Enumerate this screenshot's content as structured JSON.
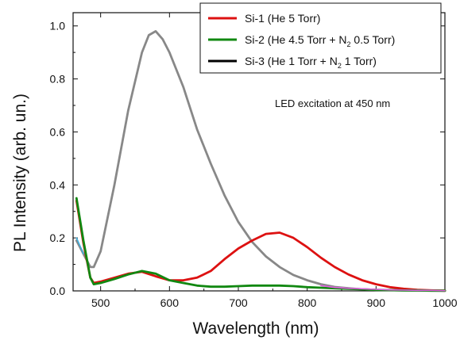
{
  "chart_data": {
    "type": "line",
    "xlabel": "Wavelength (nm)",
    "ylabel": "PL Intensity (arb. un.)",
    "xlim": [
      460,
      1000
    ],
    "ylim": [
      0,
      1.05
    ],
    "x_ticks": [
      500,
      600,
      700,
      800,
      900,
      1000
    ],
    "x_tick_labels": [
      "500",
      "600",
      "700",
      "800",
      "900",
      "1000"
    ],
    "y_ticks": [
      0.0,
      0.2,
      0.4,
      0.6,
      0.8,
      1.0
    ],
    "y_tick_labels": [
      "0.0",
      "0.2",
      "0.4",
      "0.6",
      "0.8",
      "1.0"
    ],
    "annotation": "LED excitation at 450 nm",
    "legend_position": "top-right",
    "legend": [
      {
        "label": "Si-1 (He 5 Torr)",
        "color": "#dd1111",
        "series": "Si-1"
      },
      {
        "label_main": "Si-2 (He 4.5 Torr + N",
        "label_sub": "2",
        "label_tail": " 0.5 Torr)",
        "color": "#118811",
        "series": "Si-2"
      },
      {
        "label_main": "Si-3 (He 1 Torr + N",
        "label_sub": "2",
        "label_tail": " 1 Torr)",
        "color": "#000000",
        "series": "Si-3"
      }
    ],
    "series": [
      {
        "name": "Si-1",
        "color": "#dd1111",
        "x": [
          465,
          475,
          485,
          490,
          500,
          520,
          540,
          560,
          580,
          600,
          620,
          640,
          660,
          680,
          700,
          720,
          740,
          760,
          780,
          800,
          820,
          840,
          860,
          880,
          900,
          920,
          940,
          960,
          980,
          1000
        ],
        "y": [
          0.34,
          0.18,
          0.05,
          0.03,
          0.035,
          0.05,
          0.065,
          0.072,
          0.055,
          0.04,
          0.04,
          0.05,
          0.075,
          0.12,
          0.16,
          0.19,
          0.215,
          0.22,
          0.2,
          0.165,
          0.125,
          0.09,
          0.062,
          0.04,
          0.025,
          0.014,
          0.008,
          0.004,
          0.002,
          0.001
        ]
      },
      {
        "name": "Si-2",
        "color": "#118811",
        "x": [
          465,
          475,
          485,
          490,
          500,
          520,
          540,
          560,
          580,
          600,
          620,
          640,
          660,
          680,
          700,
          720,
          740,
          760,
          780,
          800,
          820,
          840,
          860,
          880,
          900,
          920,
          940,
          960,
          980,
          1000
        ],
        "y": [
          0.35,
          0.19,
          0.05,
          0.025,
          0.03,
          0.045,
          0.062,
          0.075,
          0.065,
          0.04,
          0.03,
          0.02,
          0.016,
          0.016,
          0.018,
          0.02,
          0.02,
          0.02,
          0.018,
          0.014,
          0.012,
          0.01,
          0.008,
          0.006,
          0.004,
          0.003,
          0.002,
          0.002,
          0.001,
          0.001
        ]
      },
      {
        "name": "gray",
        "color": "#888888",
        "x": [
          465,
          475,
          485,
          490,
          500,
          520,
          540,
          560,
          570,
          580,
          590,
          600,
          620,
          640,
          660,
          680,
          700,
          720,
          740,
          760,
          780,
          800,
          820,
          840,
          860,
          880,
          900,
          920,
          940,
          960,
          980,
          1000
        ],
        "y": [
          0.19,
          0.14,
          0.09,
          0.09,
          0.15,
          0.4,
          0.68,
          0.9,
          0.965,
          0.98,
          0.95,
          0.9,
          0.77,
          0.61,
          0.48,
          0.36,
          0.26,
          0.185,
          0.13,
          0.09,
          0.06,
          0.04,
          0.025,
          0.015,
          0.01,
          0.006,
          0.004,
          0.003,
          0.002,
          0.001,
          0.001,
          0.0
        ]
      },
      {
        "name": "magenta",
        "color": "#e060e0",
        "x": [
          820,
          840,
          860,
          880,
          900,
          920,
          940,
          960,
          980,
          1000
        ],
        "y": [
          0.02,
          0.013,
          0.01,
          0.008,
          0.006,
          0.004,
          0.003,
          0.002,
          0.002,
          0.001
        ]
      },
      {
        "name": "cyan",
        "color": "#40b0e0",
        "x": [
          465,
          470,
          475
        ],
        "y": [
          0.2,
          0.17,
          0.14
        ]
      }
    ]
  }
}
